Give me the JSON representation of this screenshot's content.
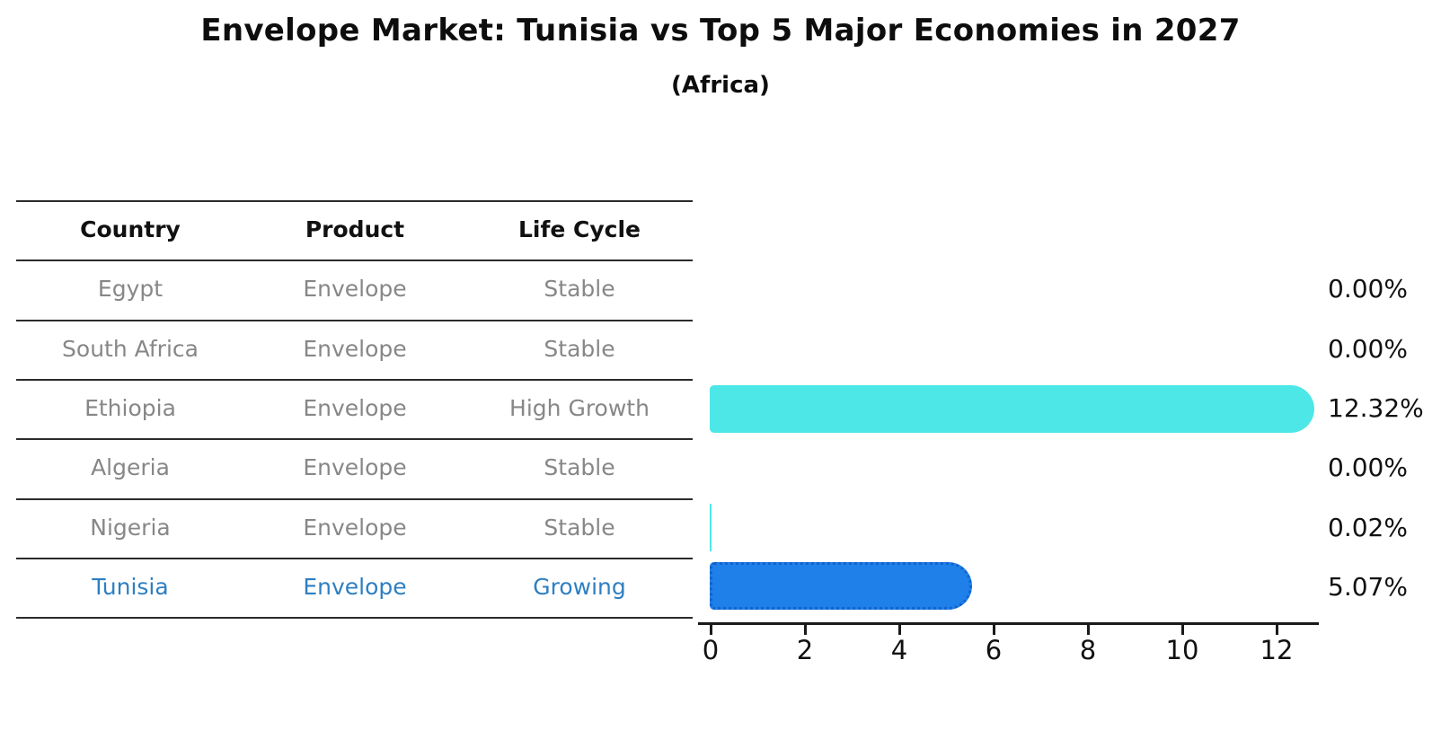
{
  "title": "Envelope Market: Tunisia vs Top 5 Major Economies in 2027",
  "subtitle": "(Africa)",
  "table": {
    "headers": [
      "Country",
      "Product",
      "Life Cycle"
    ],
    "rows": [
      {
        "country": "Egypt",
        "product": "Envelope",
        "life_cycle": "Stable",
        "value_label": "0.00%",
        "highlighted": false
      },
      {
        "country": "South Africa",
        "product": "Envelope",
        "life_cycle": "Stable",
        "value_label": "0.00%",
        "highlighted": false
      },
      {
        "country": "Ethiopia",
        "product": "Envelope",
        "life_cycle": "High Growth",
        "value_label": "12.32%",
        "highlighted": false
      },
      {
        "country": "Algeria",
        "product": "Envelope",
        "life_cycle": "Stable",
        "value_label": "0.00%",
        "highlighted": false
      },
      {
        "country": "Nigeria",
        "product": "Envelope",
        "life_cycle": "Stable",
        "value_label": "0.02%",
        "highlighted": false
      },
      {
        "country": "Tunisia",
        "product": "Envelope",
        "life_cycle": "Growing",
        "value_label": "5.07%",
        "highlighted": true
      }
    ]
  },
  "chart_data": {
    "type": "bar",
    "orientation": "horizontal",
    "title": "Envelope Market: Tunisia vs Top 5 Major Economies in 2027",
    "subtitle": "(Africa)",
    "categories": [
      "Egypt",
      "South Africa",
      "Ethiopia",
      "Algeria",
      "Nigeria",
      "Tunisia"
    ],
    "values": [
      0.0,
      0.0,
      12.32,
      0.0,
      0.02,
      5.07
    ],
    "value_labels": [
      "0.00%",
      "0.00%",
      "12.32%",
      "0.00%",
      "0.02%",
      "5.07%"
    ],
    "unit": "percent",
    "xticks": [
      0,
      2,
      4,
      6,
      8,
      10,
      12
    ],
    "xlim": [
      0,
      12.9
    ],
    "grid": false,
    "legend": false,
    "highlight_index": 5,
    "bar_color_default": "#4DE7E7",
    "bar_color_highlight": "#1E80E8"
  },
  "colors": {
    "background": "#ffffff",
    "title_text": "#0d0d0d",
    "header_text": "#111111",
    "row_text": "#878787",
    "highlight_text": "#2E7FC2",
    "table_line": "#2b2b2b",
    "axis": "#1a1a1a",
    "bar_default": "#4DE7E7",
    "bar_highlight": "#1E80E8"
  }
}
